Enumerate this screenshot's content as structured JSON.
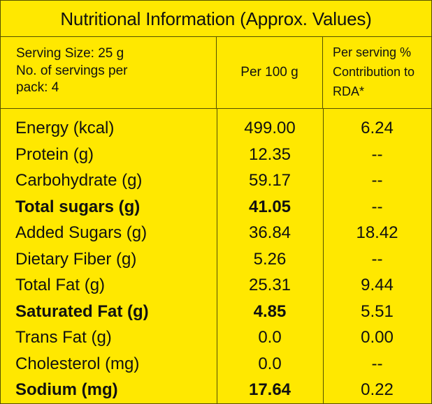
{
  "title": "Nutritional Information (Approx. Values)",
  "header": {
    "serving_size": "Serving Size: 25 g",
    "servings_line1": "No. of servings per",
    "servings_line2": "pack: 4",
    "per100_label": "Per 100 g",
    "rda_line1": "Per serving %",
    "rda_line2": "Contribution to",
    "rda_line3": "RDA*"
  },
  "rows": [
    {
      "nutrient": "Energy (kcal)",
      "per_100g": "499.00",
      "rda": "6.24",
      "bold": false
    },
    {
      "nutrient": "Protein (g)",
      "per_100g": "12.35",
      "rda": "--",
      "bold": false
    },
    {
      "nutrient": "Carbohydrate (g)",
      "per_100g": "59.17",
      "rda": "--",
      "bold": false
    },
    {
      "nutrient": "Total sugars (g)",
      "per_100g": "41.05",
      "rda": "--",
      "bold": true
    },
    {
      "nutrient": "Added Sugars (g)",
      "per_100g": "36.84",
      "rda": "18.42",
      "bold": false
    },
    {
      "nutrient": "Dietary Fiber (g)",
      "per_100g": "5.26",
      "rda": "--",
      "bold": false
    },
    {
      "nutrient": "Total Fat (g)",
      "per_100g": "25.31",
      "rda": "9.44",
      "bold": false
    },
    {
      "nutrient": "Saturated Fat (g)",
      "per_100g": "4.85",
      "rda": "5.51",
      "bold": true
    },
    {
      "nutrient": "Trans Fat (g)",
      "per_100g": "0.0",
      "rda": "0.00",
      "bold": false
    },
    {
      "nutrient": "Cholesterol (mg)",
      "per_100g": "0.0",
      "rda": "--",
      "bold": false
    },
    {
      "nutrient": "Sodium (mg)",
      "per_100g": "17.64",
      "rda": "0.22",
      "bold": true
    }
  ],
  "colors": {
    "background": "#ffe800",
    "text": "#111111",
    "border": "#555000"
  }
}
